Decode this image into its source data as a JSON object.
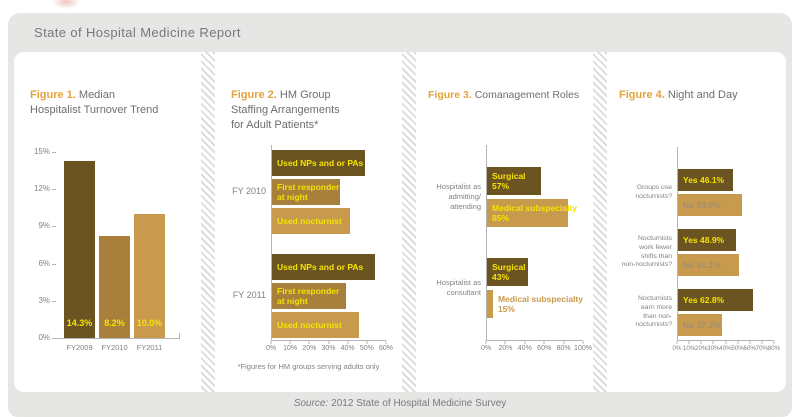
{
  "header": {
    "title": "State of Hospital Medicine Report"
  },
  "footer": {
    "source_label": "Source:",
    "source_text": "2012 State of Hospital Medicine Survey"
  },
  "palette": {
    "dark": "#6b5421",
    "medium": "#a97f3c",
    "light": "#c89a4e",
    "yellow": "#f6e400",
    "muted": "#9f8f70",
    "axis": "#b5b5b3",
    "text_gray": "#808285",
    "accent_orange": "#e2a33c",
    "title_gray": "#6d6e71",
    "card_bg": "#e6e6e4"
  },
  "chart_data": [
    {
      "type": "bar",
      "figure": "Figure 1.",
      "title": "Median Hospitalist Turnover Trend",
      "categories": [
        "FY2009",
        "FY2010",
        "FY2011"
      ],
      "values": [
        14.3,
        8.2,
        10.0
      ],
      "value_labels": [
        "14.3%",
        "8.2%",
        "10.0%"
      ],
      "bar_colors": [
        "dark",
        "medium",
        "light"
      ],
      "ylim": [
        0,
        15
      ],
      "yticks": [
        {
          "v": 15,
          "label": "15%"
        },
        {
          "v": 12,
          "label": "12%"
        },
        {
          "v": 9,
          "label": "9%"
        },
        {
          "v": 6,
          "label": "6%"
        },
        {
          "v": 3,
          "label": "3%"
        },
        {
          "v": 0,
          "label": "0%"
        }
      ]
    },
    {
      "type": "hbar-grouped",
      "figure": "Figure 2.",
      "title": "HM Group Staffing Arrangements for Adult Patients*",
      "xlim": [
        0,
        60
      ],
      "xticks": [
        "0%",
        "10%",
        "20%",
        "30%",
        "40%",
        "50%",
        "60%"
      ],
      "footnote": "*Figures for HM groups serving adults only",
      "groups": [
        {
          "label": "FY 2010",
          "bars": [
            {
              "label": "Used NPs and or PAs",
              "value": 49,
              "color": "dark",
              "label_color": "yellow"
            },
            {
              "label": "First responder\nat night",
              "value": 36,
              "color": "medium",
              "label_color": "yellow"
            },
            {
              "label": "Used nocturnist",
              "value": 41,
              "color": "light",
              "label_color": "yellow"
            }
          ]
        },
        {
          "label": "FY 2011",
          "bars": [
            {
              "label": "Used NPs and or PAs",
              "value": 54,
              "color": "dark",
              "label_color": "yellow"
            },
            {
              "label": "First responder\nat night",
              "value": 39,
              "color": "medium",
              "label_color": "yellow"
            },
            {
              "label": "Used nocturnist",
              "value": 46,
              "color": "light",
              "label_color": "yellow"
            }
          ]
        }
      ]
    },
    {
      "type": "hbar-grouped",
      "figure": "Figure 3.",
      "title": "Comanagement Roles",
      "xlim": [
        0,
        100
      ],
      "xticks": [
        "0%",
        "20%",
        "40%",
        "60%",
        "80%",
        "100%"
      ],
      "groups": [
        {
          "label": "Hospitalist as\nadmitting/\nattending",
          "bars": [
            {
              "label": "Surgical",
              "pct": "57%",
              "value": 57,
              "color": "dark",
              "label_color": "yellow"
            },
            {
              "label": "Medical subspecialty",
              "pct": "85%",
              "value": 85,
              "color": "light",
              "label_color": "yellow"
            }
          ]
        },
        {
          "label": "Hospitalist as\nconsultant",
          "bars": [
            {
              "label": "Surgical",
              "pct": "43%",
              "value": 43,
              "color": "dark",
              "label_color": "yellow"
            },
            {
              "label": "Medical subspecialty",
              "pct": "15%",
              "value": 15,
              "color": "light",
              "label_outside": true
            }
          ]
        }
      ]
    },
    {
      "type": "hbar-grouped",
      "figure": "Figure 4.",
      "title": "Night and Day",
      "xlim": [
        0,
        80
      ],
      "xticks": [
        "0%",
        "10%",
        "20%",
        "30%",
        "40%",
        "50%",
        "60%",
        "70%",
        "80%"
      ],
      "groups": [
        {
          "label": "Groups use\nnocturnists?",
          "bars": [
            {
              "label": "Yes 46.1%",
              "value": 46.1,
              "color": "dark",
              "label_color": "yellow"
            },
            {
              "label": "No 53.9%",
              "value": 53.9,
              "color": "light",
              "label_color": "muted"
            }
          ]
        },
        {
          "label": "Nocturnists\nwork fewer\nshifts than\nnon-nocturnists?",
          "bars": [
            {
              "label": "Yes 48.9%",
              "value": 48.9,
              "color": "dark",
              "label_color": "yellow"
            },
            {
              "label": "No 51.1%",
              "value": 51.1,
              "color": "light",
              "label_color": "muted"
            }
          ]
        },
        {
          "label": "Nocturnists\nearn more\nthan non-\nnocturnists?",
          "bars": [
            {
              "label": "Yes 62.8%",
              "value": 62.8,
              "color": "dark",
              "label_color": "yellow"
            },
            {
              "label": "No 37.2%",
              "value": 37.2,
              "color": "light",
              "label_color": "muted"
            }
          ]
        }
      ]
    }
  ]
}
